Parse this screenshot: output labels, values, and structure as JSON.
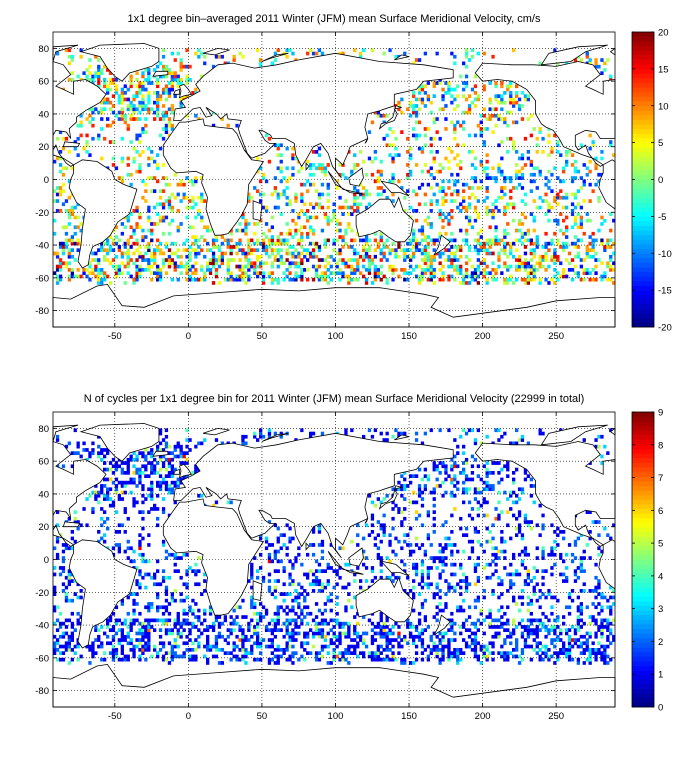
{
  "chart_data": [
    {
      "type": "heatmap",
      "title": "1x1 degree bin–averaged 2011 Winter (JFM) mean Surface Meridional Velocity, cm/s",
      "xlim": [
        -92,
        290
      ],
      "ylim": [
        -90,
        90
      ],
      "x_ticks": [
        "-50",
        "0",
        "50",
        "100",
        "150",
        "200",
        "250"
      ],
      "y_ticks": [
        "80",
        "60",
        "40",
        "20",
        "0",
        "-20",
        "-40",
        "-60",
        "-80"
      ],
      "grid": true,
      "colorbar": {
        "range": [
          -20,
          20
        ],
        "ticks": [
          "20",
          "15",
          "10",
          "5",
          "0",
          "-5",
          "-10",
          "-15",
          "-20"
        ],
        "colormap": "jet",
        "placement": "right"
      },
      "grid_cell_deg": 1,
      "coverage_note": "sparse per-bin values over ocean, densest in Southern Ocean and North Atlantic"
    },
    {
      "type": "heatmap",
      "title": "N of cycles per 1x1 degree bin for 2011 Winter (JFM) mean Surface Meridional Velocity (22999 in total)",
      "xlim": [
        -92,
        290
      ],
      "ylim": [
        -90,
        90
      ],
      "x_ticks": [
        "-50",
        "0",
        "50",
        "100",
        "150",
        "200",
        "250"
      ],
      "y_ticks": [
        "80",
        "60",
        "40",
        "20",
        "0",
        "-20",
        "-40",
        "-60",
        "-80"
      ],
      "grid": true,
      "colorbar": {
        "range": [
          0,
          9
        ],
        "ticks": [
          "9",
          "8",
          "7",
          "6",
          "5",
          "4",
          "3",
          "2",
          "1",
          "0"
        ],
        "colormap": "jet",
        "placement": "right"
      },
      "total_cycles": 22999
    }
  ]
}
